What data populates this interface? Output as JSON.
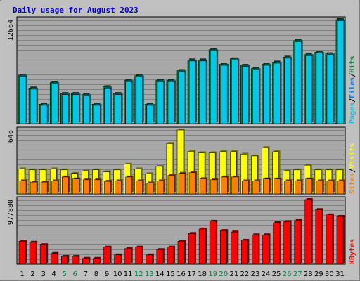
{
  "chart_data": {
    "type": "bar",
    "title": "Daily usage for August 2023",
    "days": [
      "1",
      "2",
      "3",
      "4",
      "5",
      "6",
      "7",
      "8",
      "9",
      "10",
      "11",
      "12",
      "13",
      "14",
      "15",
      "16",
      "17",
      "18",
      "19",
      "20",
      "21",
      "22",
      "23",
      "24",
      "25",
      "26",
      "27",
      "28",
      "29",
      "30",
      "31"
    ],
    "weekend_days": [
      "5",
      "6",
      "12",
      "13",
      "19",
      "20",
      "26",
      "27"
    ],
    "colors": {
      "pages": "#00c8e8",
      "files": "#0080ff",
      "hits": "#008040",
      "sites": "#ff8000",
      "visits": "#ffff00",
      "kbytes": "#ff0000",
      "weekday_label": "#000000",
      "weekend_label": "#008040"
    },
    "panels": [
      {
        "id": "hits-panel",
        "max_label": "12664",
        "ymax": 12664,
        "legend": [
          {
            "text": "Pages",
            "color": "#00c8e8"
          },
          {
            "text": "Files",
            "color": "#0080ff"
          },
          {
            "text": "Hits",
            "color": "#008040"
          }
        ],
        "series": [
          {
            "name": "Hits",
            "color": "#008040",
            "values": [
              5900,
              4340,
              2370,
              5000,
              3670,
              3670,
              3530,
              2370,
              4500,
              3670,
              5260,
              5840,
              2370,
              5260,
              5260,
              6460,
              7760,
              7760,
              9000,
              7230,
              7890,
              7100,
              6700,
              7230,
              7500,
              8100,
              10100,
              8400,
              8700,
              8500,
              12664
            ]
          },
          {
            "name": "Pages",
            "color": "#00c8e8",
            "values": [
              5780,
              4200,
              2230,
              4860,
              3540,
              3540,
              3400,
              2230,
              4340,
              3540,
              5120,
              5700,
              2230,
              5120,
              5120,
              6320,
              7630,
              7630,
              8880,
              7100,
              7760,
              6970,
              6570,
              7100,
              7360,
              7970,
              9980,
              8280,
              8580,
              8380,
              12520
            ]
          }
        ]
      },
      {
        "id": "visits-panel",
        "max_label": "646",
        "ymax": 646,
        "legend": [
          {
            "text": "Sites",
            "color": "#ff8000"
          },
          {
            "text": "Visits",
            "color": "#ffff00"
          }
        ],
        "series": [
          {
            "name": "Visits",
            "color": "#ffff00",
            "values": [
              253,
              243,
              243,
              253,
              243,
              208,
              233,
              243,
              223,
              243,
              300,
              253,
              204,
              278,
              509,
              646,
              431,
              415,
              415,
              426,
              426,
              402,
              384,
              467,
              426,
              233,
              243,
              290,
              243,
              243,
              243
            ]
          },
          {
            "name": "Sites",
            "color": "#ff8000",
            "values": [
              132,
              120,
              120,
              132,
              171,
              151,
              143,
              143,
              127,
              132,
              171,
              132,
              111,
              132,
              188,
              208,
              215,
              154,
              143,
              171,
              171,
              132,
              132,
              151,
              151,
              132,
              132,
              151,
              132,
              132,
              132
            ]
          }
        ]
      },
      {
        "id": "kbytes-panel",
        "max_label": "977880",
        "ymax": 977880,
        "legend": [
          {
            "text": "KBytes",
            "color": "#ff0000"
          }
        ],
        "series": [
          {
            "name": "KBytes",
            "color": "#ff0000",
            "values": [
              347000,
              332000,
              295000,
              162000,
              118000,
              118000,
              88000,
              88000,
              258000,
              140000,
              236000,
              258000,
              140000,
              221000,
              258000,
              347000,
              465000,
              532000,
              650000,
              509000,
              487000,
              362000,
              444000,
              444000,
              627000,
              643000,
              660000,
              977880,
              826000,
              746000,
              723000
            ]
          }
        ]
      }
    ]
  }
}
